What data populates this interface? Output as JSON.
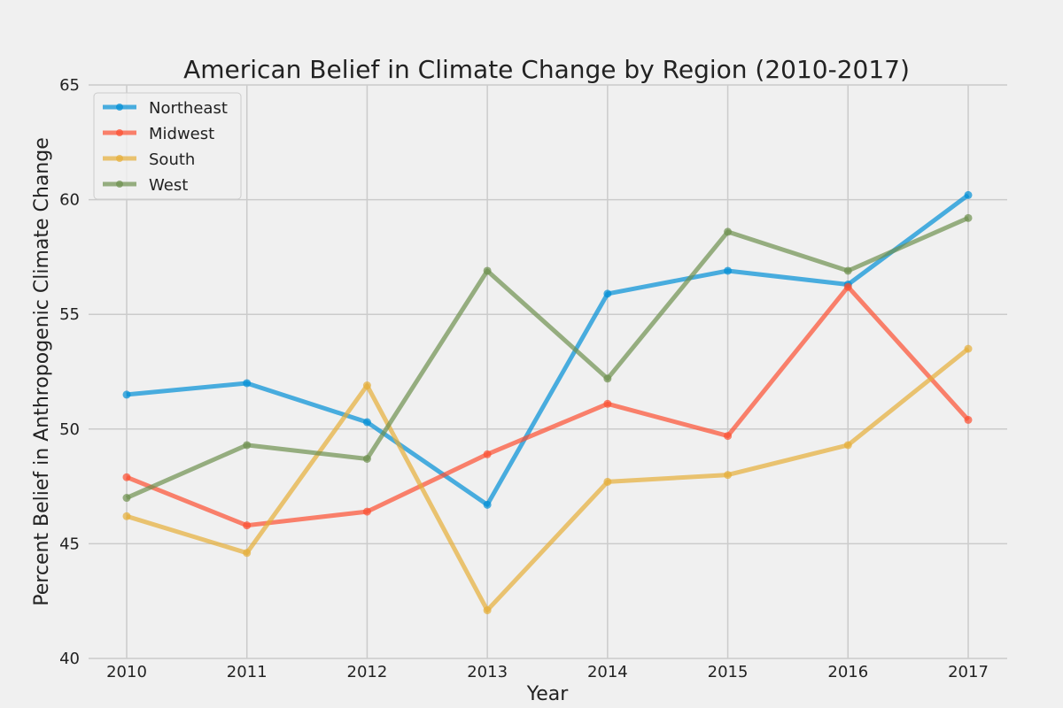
{
  "chart_data": {
    "type": "line",
    "title": "American Belief in Climate Change by Region (2010-2017)",
    "xlabel": "Year",
    "ylabel": "Percent Belief in Anthropogenic Climate Change",
    "x": [
      2010,
      2011,
      2012,
      2013,
      2014,
      2015,
      2016,
      2017
    ],
    "x_tick_labels": [
      "2010",
      "2011",
      "2012",
      "2013",
      "2014",
      "2015",
      "2016",
      "2017"
    ],
    "ylim": [
      40,
      65
    ],
    "y_ticks": [
      40,
      45,
      50,
      55,
      60,
      65
    ],
    "y_tick_labels": [
      "40",
      "45",
      "50",
      "55",
      "60",
      "65"
    ],
    "grid": true,
    "legend_position": "top-left",
    "series": [
      {
        "name": "Northeast",
        "color": "#008fd5",
        "values": [
          51.5,
          52.0,
          50.3,
          46.7,
          55.9,
          56.9,
          56.3,
          60.2
        ]
      },
      {
        "name": "Midwest",
        "color": "#fc4f30",
        "values": [
          47.9,
          45.8,
          46.4,
          48.9,
          51.1,
          49.7,
          56.2,
          50.4
        ]
      },
      {
        "name": "South",
        "color": "#e5ae38",
        "values": [
          46.2,
          44.6,
          51.9,
          42.1,
          47.7,
          48.0,
          49.3,
          53.5
        ]
      },
      {
        "name": "West",
        "color": "#6d904f",
        "values": [
          47.0,
          49.3,
          48.7,
          56.9,
          52.2,
          58.6,
          56.9,
          59.2
        ]
      }
    ]
  }
}
